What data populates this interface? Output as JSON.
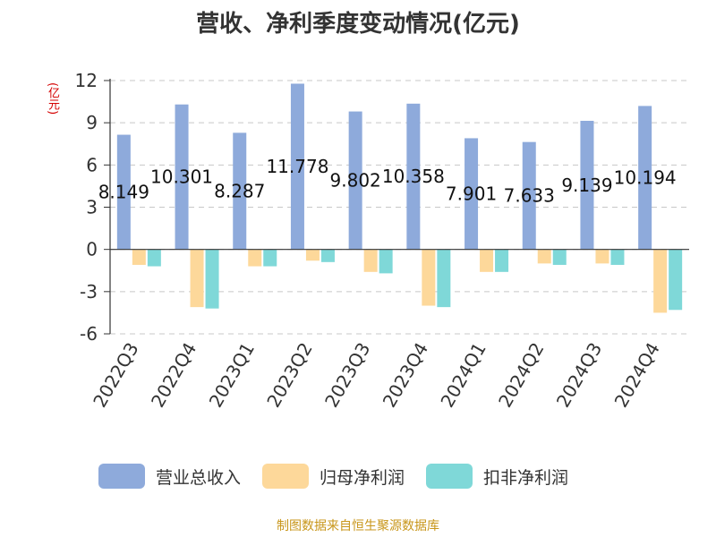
{
  "chart_data": {
    "type": "bar",
    "title": "营收、净利季度变动情况(亿元)",
    "ylabel": "(亿元)",
    "ylim": [
      -6,
      12
    ],
    "yticks": [
      12,
      9,
      6,
      3,
      0,
      -3,
      -6
    ],
    "categories": [
      "2022Q3",
      "2022Q4",
      "2023Q1",
      "2023Q2",
      "2023Q3",
      "2023Q4",
      "2024Q1",
      "2024Q2",
      "2024Q3",
      "2024Q4"
    ],
    "series": [
      {
        "name": "营业总收入",
        "color": "#8eaadb",
        "values": [
          8.149,
          10.301,
          8.287,
          11.778,
          9.802,
          10.358,
          7.901,
          7.633,
          9.139,
          10.194
        ],
        "labels": [
          "8.149",
          "10.301",
          "8.287",
          "11.778",
          "9.802",
          "10.358",
          "7.901",
          "7.633",
          "9.139",
          "10.194"
        ]
      },
      {
        "name": "归母净利润",
        "color": "#fdd89a",
        "values": [
          -1.1,
          -4.1,
          -1.2,
          -0.8,
          -1.6,
          -4.0,
          -1.6,
          -1.0,
          -1.0,
          -4.5
        ]
      },
      {
        "name": "扣非净利润",
        "color": "#7fd8d8",
        "values": [
          -1.2,
          -4.2,
          -1.2,
          -0.9,
          -1.7,
          -4.1,
          -1.6,
          -1.1,
          -1.1,
          -4.3
        ]
      }
    ],
    "grid": true,
    "legend_position": "bottom"
  },
  "source": "制图数据来自恒生聚源数据库"
}
